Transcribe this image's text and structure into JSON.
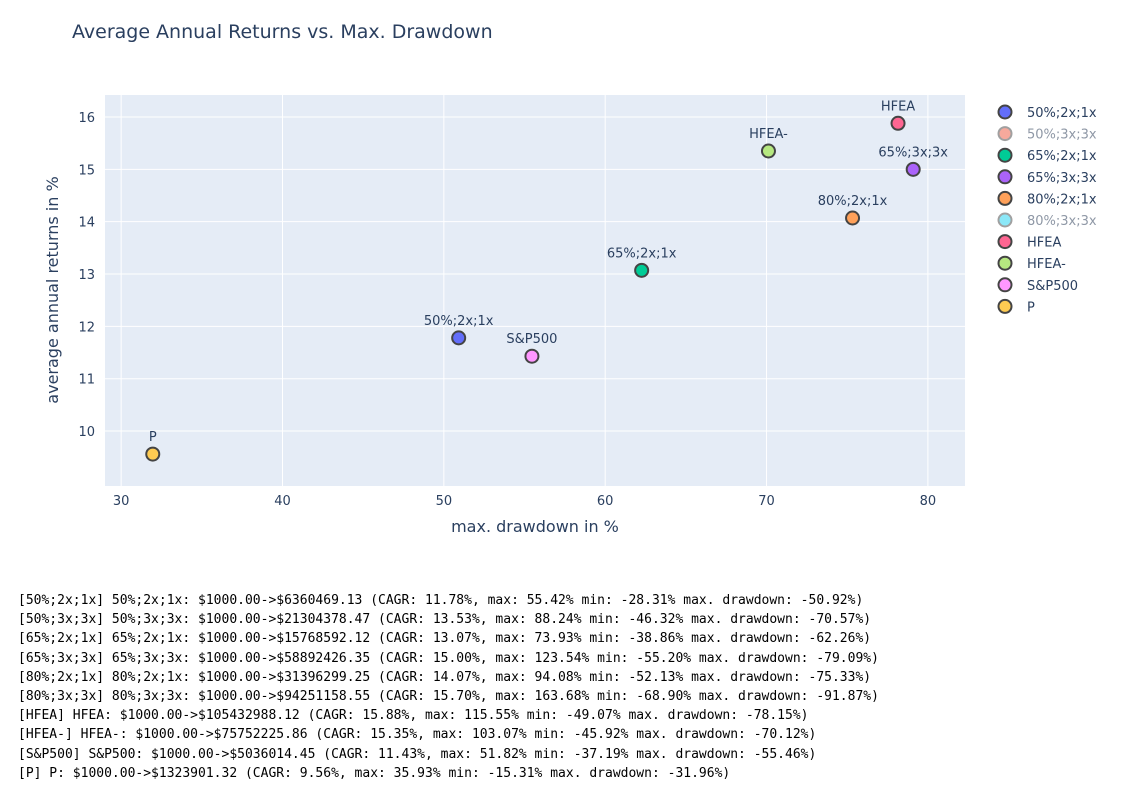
{
  "colors": {
    "plot_bg": "#e5ecf6",
    "grid": "#ffffff",
    "text": "#2a3f5f",
    "marker_outline": "#444444",
    "legend_hidden_text": "#8f98a6"
  },
  "chart_data": {
    "type": "scatter",
    "title": "Average Annual Returns vs. Max. Drawdown",
    "xlabel": "max. drawdown in %",
    "ylabel": "average annual returns in %",
    "xlim": [
      29,
      82.3
    ],
    "ylim": [
      8.95,
      16.42
    ],
    "xticks": [
      30,
      40,
      50,
      60,
      70,
      80
    ],
    "yticks": [
      10,
      11,
      12,
      13,
      14,
      15,
      16
    ],
    "grid": true,
    "legend_position": "right",
    "series": [
      {
        "name": "50%;2x;1x",
        "color": "#636efa",
        "visible": true,
        "x": 50.92,
        "y": 11.78,
        "label": "50%;2x;1x"
      },
      {
        "name": "50%;3x;3x",
        "color": "#ef553b",
        "visible": false,
        "x": 70.57,
        "y": 13.53,
        "label": "50%;3x;3x"
      },
      {
        "name": "65%;2x;1x",
        "color": "#00cc96",
        "visible": true,
        "x": 62.26,
        "y": 13.07,
        "label": "65%;2x;1x"
      },
      {
        "name": "65%;3x;3x",
        "color": "#ab63fa",
        "visible": true,
        "x": 79.09,
        "y": 15.0,
        "label": "65%;3x;3x"
      },
      {
        "name": "80%;2x;1x",
        "color": "#ffa15a",
        "visible": true,
        "x": 75.33,
        "y": 14.07,
        "label": "80%;2x;1x"
      },
      {
        "name": "80%;3x;3x",
        "color": "#19d3f3",
        "visible": false,
        "x": 91.87,
        "y": 15.7,
        "label": "80%;3x;3x"
      },
      {
        "name": "HFEA",
        "color": "#ff6692",
        "visible": true,
        "x": 78.15,
        "y": 15.88,
        "label": "HFEA"
      },
      {
        "name": "HFEA-",
        "color": "#b6e880",
        "visible": true,
        "x": 70.12,
        "y": 15.35,
        "label": "HFEA-"
      },
      {
        "name": "S&P500",
        "color": "#ff97ff",
        "visible": true,
        "x": 55.46,
        "y": 11.43,
        "label": "S&P500"
      },
      {
        "name": "P",
        "color": "#fecb52",
        "visible": true,
        "x": 31.96,
        "y": 9.56,
        "label": "P"
      }
    ]
  },
  "log_lines": [
    "[50%;2x;1x] 50%;2x;1x: $1000.00->$6360469.13 (CAGR: 11.78%, max: 55.42% min: -28.31% max. drawdown: -50.92%)",
    "[50%;3x;3x] 50%;3x;3x: $1000.00->$21304378.47 (CAGR: 13.53%, max: 88.24% min: -46.32% max. drawdown: -70.57%)",
    "[65%;2x;1x] 65%;2x;1x: $1000.00->$15768592.12 (CAGR: 13.07%, max: 73.93% min: -38.86% max. drawdown: -62.26%)",
    "[65%;3x;3x] 65%;3x;3x: $1000.00->$58892426.35 (CAGR: 15.00%, max: 123.54% min: -55.20% max. drawdown: -79.09%)",
    "[80%;2x;1x] 80%;2x;1x: $1000.00->$31396299.25 (CAGR: 14.07%, max: 94.08% min: -52.13% max. drawdown: -75.33%)",
    "[80%;3x;3x] 80%;3x;3x: $1000.00->$94251158.55 (CAGR: 15.70%, max: 163.68% min: -68.90% max. drawdown: -91.87%)",
    "[HFEA] HFEA: $1000.00->$105432988.12 (CAGR: 15.88%, max: 115.55% min: -49.07% max. drawdown: -78.15%)",
    "[HFEA-] HFEA-: $1000.00->$75752225.86 (CAGR: 15.35%, max: 103.07% min: -45.92% max. drawdown: -70.12%)",
    "[S&P500] S&P500: $1000.00->$5036014.45 (CAGR: 11.43%, max: 51.82% min: -37.19% max. drawdown: -55.46%)",
    "[P] P: $1000.00->$1323901.32 (CAGR: 9.56%, max: 35.93% min: -15.31% max. drawdown: -31.96%)"
  ]
}
